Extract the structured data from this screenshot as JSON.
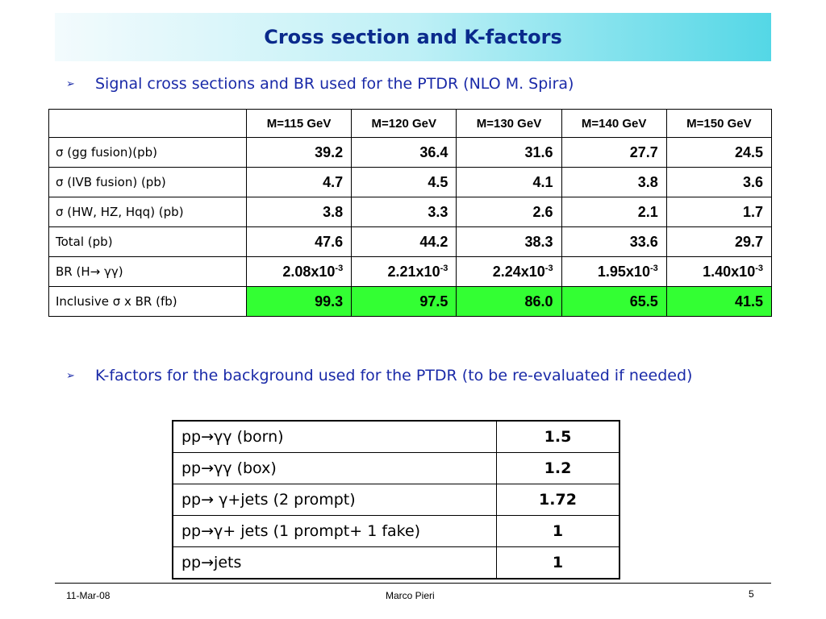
{
  "title": "Cross section and K-factors",
  "bullet1": "Signal cross sections and BR used for the PTDR (NLO M. Spira)",
  "bullet2": "K-factors for the background used for the PTDR (to be re-evaluated if needed)",
  "bullet_icon": "arrow-bullet-icon",
  "signal_table": {
    "headers": [
      "M=115 GeV",
      "M=120 GeV",
      "M=130 GeV",
      "M=140 GeV",
      "M=150 GeV"
    ],
    "rows": [
      {
        "label": "σ (gg fusion)(pb)",
        "values": [
          "39.2",
          "36.4",
          "31.6",
          "27.7",
          "24.5"
        ]
      },
      {
        "label": "σ (IVB fusion) (pb)",
        "values": [
          "4.7",
          "4.5",
          "4.1",
          "3.8",
          "3.6"
        ]
      },
      {
        "label": "σ (HW, HZ, Hqq) (pb)",
        "values": [
          "3.8",
          "3.3",
          "2.6",
          "2.1",
          "1.7"
        ]
      },
      {
        "label": "Total (pb)",
        "values": [
          "47.6",
          "44.2",
          "38.3",
          "33.6",
          "29.7"
        ]
      },
      {
        "label": "BR (H→ γγ)",
        "values": [
          "2.08x10",
          "2.21x10",
          "2.24x10",
          "1.95x10",
          "1.40x10"
        ],
        "exponent": "-3"
      },
      {
        "label": "Inclusive σ x BR (fb)",
        "values": [
          "99.3",
          "97.5",
          "86.0",
          "65.5",
          "41.5"
        ]
      }
    ],
    "highlight_color": "#33ff33"
  },
  "kfactor_table": {
    "rows": [
      {
        "process": "pp→γγ (born)",
        "k": "1.5"
      },
      {
        "process": "pp→γγ (box)",
        "k": "1.2"
      },
      {
        "process": "pp→ γ+jets (2 prompt)",
        "k": "1.72"
      },
      {
        "process": "pp→γ+ jets (1 prompt+ 1 fake)",
        "k": "1"
      },
      {
        "process": "pp→jets",
        "k": "1"
      }
    ]
  },
  "footer": {
    "date": "11-Mar-08",
    "author": "Marco Pieri",
    "page": "5"
  },
  "colors": {
    "title_text": "#0a2a8c",
    "bullet_text": "#1a2aa8",
    "title_gradient_end": "#54d7e6"
  }
}
